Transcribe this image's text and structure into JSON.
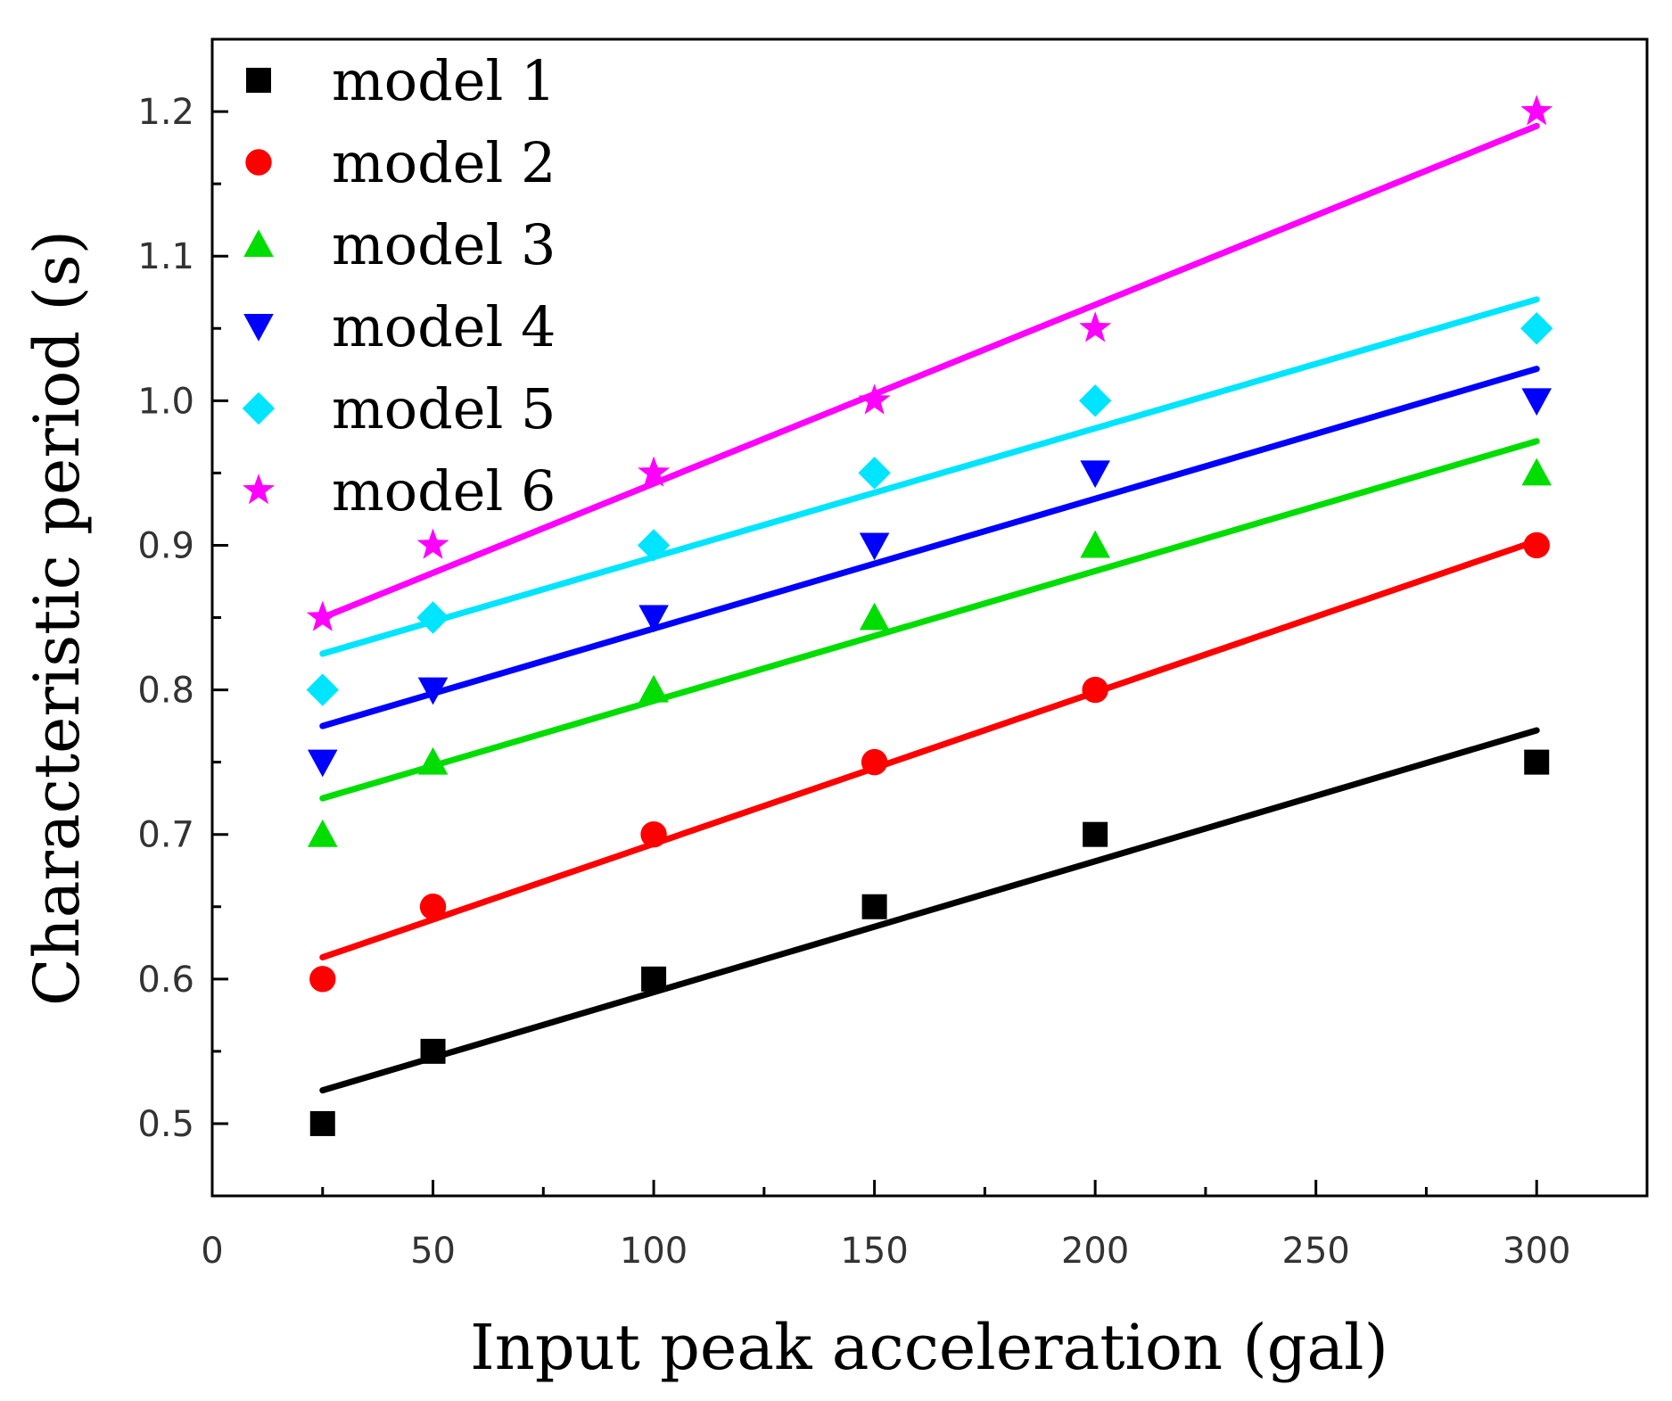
{
  "chart_data": {
    "type": "scatter",
    "title": "",
    "xlabel": "Input peak acceleration (gal)",
    "ylabel": "Characteristic period (s)",
    "xlim": [
      0,
      325
    ],
    "ylim": [
      0.45,
      1.25
    ],
    "xticks": [
      0,
      50,
      100,
      150,
      200,
      250,
      300
    ],
    "xtick_labels": [
      "0",
      "50",
      "100",
      "150",
      "200",
      "250",
      "300"
    ],
    "yticks": [
      0.5,
      0.6,
      0.7,
      0.8,
      0.9,
      1.0,
      1.1,
      1.2
    ],
    "ytick_labels": [
      "0.5",
      "0.6",
      "0.7",
      "0.8",
      "0.9",
      "1.0",
      "1.1",
      "1.2"
    ],
    "grid": false,
    "legend_position": "top-left",
    "x": [
      25,
      50,
      100,
      150,
      200,
      300
    ],
    "series": [
      {
        "name": "model 1",
        "marker": "square",
        "color": "#000000",
        "values": [
          0.5,
          0.55,
          0.6,
          0.65,
          0.7,
          0.75
        ],
        "fit": {
          "x": [
            25,
            300
          ],
          "y": [
            0.523,
            0.772
          ]
        }
      },
      {
        "name": "model 2",
        "marker": "circle",
        "color": "#ff0000",
        "values": [
          0.6,
          0.65,
          0.7,
          0.75,
          0.8,
          0.9
        ],
        "fit": {
          "x": [
            25,
            300
          ],
          "y": [
            0.615,
            0.903
          ]
        }
      },
      {
        "name": "model 3",
        "marker": "triangle-up",
        "color": "#00dd00",
        "values": [
          0.7,
          0.75,
          0.8,
          0.85,
          0.9,
          0.95
        ],
        "fit": {
          "x": [
            25,
            300
          ],
          "y": [
            0.725,
            0.972
          ]
        }
      },
      {
        "name": "model 4",
        "marker": "triangle-down",
        "color": "#0000ff",
        "values": [
          0.75,
          0.8,
          0.85,
          0.9,
          0.95,
          1.0
        ],
        "fit": {
          "x": [
            25,
            300
          ],
          "y": [
            0.775,
            1.022
          ]
        }
      },
      {
        "name": "model 5",
        "marker": "diamond",
        "color": "#00e5ff",
        "values": [
          0.8,
          0.85,
          0.9,
          0.95,
          1.0,
          1.05
        ],
        "fit": {
          "x": [
            25,
            300
          ],
          "y": [
            0.825,
            1.07
          ]
        }
      },
      {
        "name": "model 6",
        "marker": "star",
        "color": "#ff00ff",
        "values": [
          0.85,
          0.9,
          0.95,
          1.0,
          1.05,
          1.2
        ],
        "fit": {
          "x": [
            25,
            300
          ],
          "y": [
            0.85,
            1.19
          ]
        }
      }
    ]
  }
}
